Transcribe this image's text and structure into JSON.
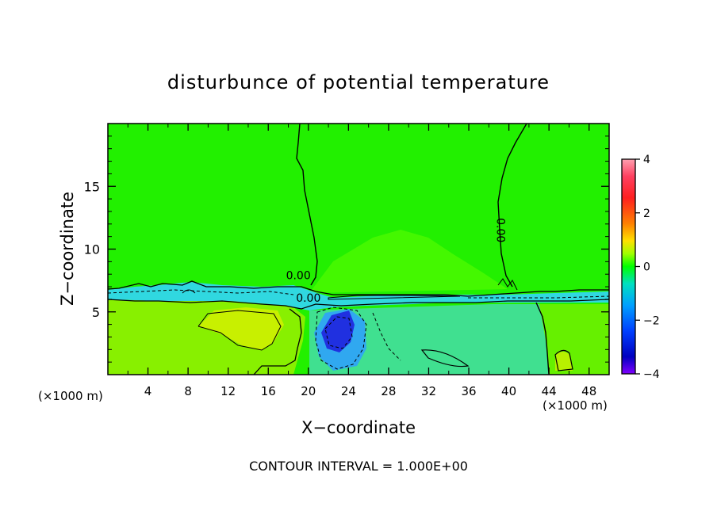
{
  "chart_data": {
    "type": "heatmap",
    "title": "disturbunce of potential temperature",
    "xlabel": "X−coordinate",
    "ylabel": "Z−coordinate",
    "x_unit_left": "(×1000 m)",
    "x_unit_right": "(×1000 m)",
    "footer": "CONTOUR INTERVAL = 1.000E+00",
    "xlim": [
      0,
      50
    ],
    "ylim": [
      0,
      20
    ],
    "xticks": [
      4,
      8,
      12,
      16,
      20,
      24,
      28,
      32,
      36,
      40,
      44,
      48
    ],
    "xtick_labels": [
      "4",
      "8",
      "12",
      "16",
      "20",
      "24",
      "28",
      "32",
      "36",
      "40",
      "44",
      "48"
    ],
    "yticks": [
      5,
      10,
      15
    ],
    "ytick_labels": [
      "5",
      "10",
      "15"
    ],
    "colorbar": {
      "range": [
        -4,
        4
      ],
      "ticks": [
        4,
        2,
        0,
        -2,
        -4
      ],
      "tick_labels": [
        "4",
        "2",
        "0",
        "−2",
        "−4"
      ],
      "colors": [
        "#ffa0b0",
        "#ff2020",
        "#ff8000",
        "#ffe000",
        "#a0ff00",
        "#00ff00",
        "#00e0c0",
        "#00a0ff",
        "#0040ff",
        "#0000c0",
        "#8000ff"
      ]
    },
    "contour_labels": [
      {
        "text": "0.00",
        "x": 19,
        "z": 7.6
      },
      {
        "text": "0.00",
        "x": 20,
        "z": 5.8
      },
      {
        "text": "0.00",
        "x": 38.8,
        "z": 11.5
      }
    ],
    "regions": [
      {
        "name": "background",
        "value": 0,
        "color": "#22f000"
      },
      {
        "name": "upper-center-warm",
        "value": 0.3,
        "color": "#44f800"
      },
      {
        "name": "inversion-band",
        "value": -1,
        "color": "#30d8e0"
      },
      {
        "name": "lower-left-warm",
        "value": 0.8,
        "color": "#88f000"
      },
      {
        "name": "warm-core",
        "value": 1.4,
        "color": "#c8f000"
      },
      {
        "name": "lower-right-cool",
        "value": -0.6,
        "color": "#40e090"
      },
      {
        "name": "cold-core",
        "value": -3.2,
        "color": "#2030e0"
      },
      {
        "name": "right-warm",
        "value": 0.4,
        "color": "#66f000"
      }
    ]
  }
}
